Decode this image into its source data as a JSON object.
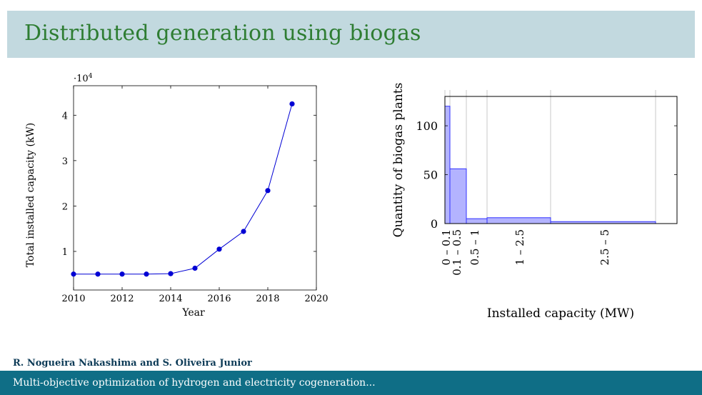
{
  "slide": {
    "title": "Distributed generation using biogas",
    "authors": "R. Nogueira Nakashima and S. Oliveira Junior",
    "footer": "Multi-objective optimization of hydrogen and electricity cogeneration..."
  },
  "colors": {
    "title_bar": "#c2d9df",
    "title_text": "#2e7d32",
    "footer_bar": "#0f6e86",
    "line_series": "#0000d4",
    "bar_fill": "#b3b3ff",
    "bar_stroke": "#3333ff"
  },
  "chart_data": [
    {
      "type": "line",
      "xlabel": "Year",
      "ylabel": "Total installed capacity (kW)",
      "y_scale_label": "·10",
      "y_scale_exponent": "4",
      "xlim": [
        2010,
        2020
      ],
      "ylim": [
        0.15,
        4.65
      ],
      "x_ticks": [
        2010,
        2012,
        2014,
        2016,
        2018,
        2020
      ],
      "y_ticks": [
        1,
        2,
        3,
        4
      ],
      "x_tick_labels": [
        "2010",
        "2012",
        "2014",
        "2016",
        "2018",
        "2020"
      ],
      "y_tick_labels": [
        "1",
        "2",
        "3",
        "4"
      ],
      "grid": false,
      "series": [
        {
          "x": [
            2010,
            2011,
            2012,
            2013,
            2014,
            2015,
            2016,
            2017,
            2018,
            2019
          ],
          "y": [
            0.5,
            0.5,
            0.5,
            0.5,
            0.51,
            0.63,
            1.05,
            1.44,
            2.34,
            4.25
          ]
        }
      ]
    },
    {
      "type": "bar",
      "xlabel": "Installed capacity (MW)",
      "ylabel": "Quantity of biogas plants",
      "ylim": [
        0,
        130
      ],
      "y_ticks": [
        0,
        50,
        100
      ],
      "y_tick_labels": [
        "0",
        "50",
        "100"
      ],
      "categories": [
        "0 – 0.1",
        "0.1 – 0.5",
        "0.5 – 1",
        "1 – 2.5",
        "2.5 – 5"
      ],
      "bin_edges": [
        0,
        0.1,
        0.5,
        1,
        2.5,
        5
      ],
      "values": [
        120,
        56,
        5,
        6,
        2
      ],
      "grid": "vertical"
    }
  ]
}
